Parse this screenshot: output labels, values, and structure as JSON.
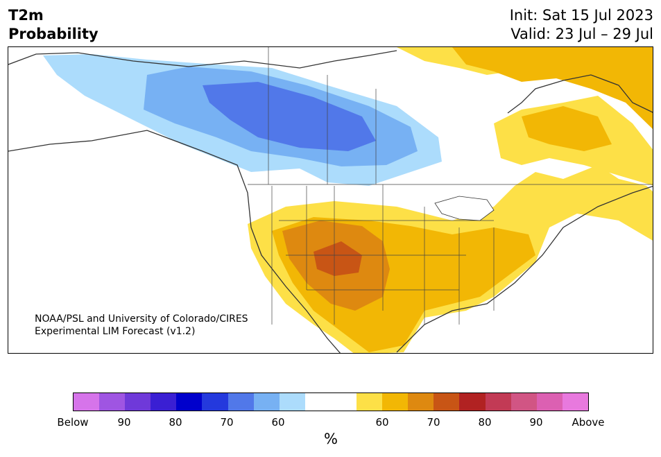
{
  "title": {
    "line1": "T2m",
    "line2": "Probability"
  },
  "header_right": {
    "init": "Init: Sat 15 Jul 2023",
    "valid": "Valid: 23 Jul – 29 Jul"
  },
  "credit": {
    "line1": "NOAA/PSL and University of Colorado/CIRES",
    "line2": "Experimental LIM Forecast (v1.2)"
  },
  "colorbar": {
    "colors": [
      "#d674ea",
      "#9f55e2",
      "#6f39d9",
      "#3a1fd3",
      "#0000cc",
      "#2439dd",
      "#5178e9",
      "#77b1f3",
      "#acdcfc",
      "#ffffff",
      "#ffffff",
      "#fde047",
      "#f2b705",
      "#de8910",
      "#c85515",
      "#b12222",
      "#c23a55",
      "#d15584",
      "#dc60b2",
      "#e879de"
    ],
    "tick_labels": [
      "Below",
      "90",
      "80",
      "70",
      "60",
      "60",
      "70",
      "80",
      "90",
      "Above"
    ],
    "unit": "%"
  },
  "map_legend_meaning": {
    "cold_colors": "Below",
    "warm_colors": "Above"
  }
}
